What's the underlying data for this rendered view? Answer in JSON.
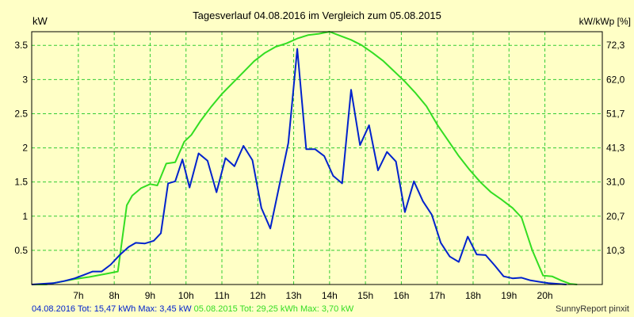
{
  "colors": {
    "background": "#FFFFC6",
    "grid": "#33CC33",
    "series_2016": "#0022CC",
    "series_2015": "#33DD22",
    "text": "#000000"
  },
  "legend": {
    "series_2016_text": "04.08.2016 Tot: 15,47 kWh Max: 3,45 kW",
    "series_2015_text": "05.08.2015 Tot: 29,25 kWh Max: 3,70 kW"
  },
  "credit": "SunnyReport pinxit",
  "chart_data": {
    "type": "line",
    "title": "Tagesverlauf 04.08.2016 im Vergleich zum 05.08.2015",
    "ylabel_left": "kW",
    "ylabel_right": "kW/kWp [%]",
    "xlim": [
      5.7,
      21.6
    ],
    "ylim": [
      0,
      3.7
    ],
    "grid": true,
    "x_ticks": [
      7,
      8,
      9,
      10,
      11,
      12,
      13,
      14,
      15,
      16,
      17,
      18,
      19,
      20
    ],
    "x_tick_labels": [
      "7h",
      "8h",
      "9h",
      "10h",
      "11h",
      "12h",
      "13h",
      "14h",
      "15h",
      "16h",
      "17h",
      "18h",
      "19h",
      "20h"
    ],
    "y_ticks_left": [
      0.5,
      1,
      1.5,
      2,
      2.5,
      3,
      3.5
    ],
    "y_tick_labels_left": [
      "0.5",
      "1",
      "1.5",
      "2",
      "2.5",
      "3",
      "3.5"
    ],
    "y_ticks_right_positions": [
      0.5,
      1.0,
      1.5,
      2.0,
      2.5,
      3.0,
      3.5
    ],
    "y_tick_labels_right": [
      "10,3",
      "20,7",
      "31,0",
      "41,3",
      "51,7",
      "62,0",
      "72,3"
    ],
    "series": [
      {
        "name": "04.08.2016",
        "x": [
          5.7,
          6.3,
          6.6,
          6.9,
          7.15,
          7.4,
          7.65,
          7.9,
          8.15,
          8.4,
          8.6,
          8.85,
          9.1,
          9.3,
          9.5,
          9.7,
          9.9,
          10.1,
          10.35,
          10.6,
          10.85,
          11.1,
          11.35,
          11.6,
          11.85,
          12.1,
          12.35,
          12.6,
          12.85,
          13.1,
          13.35,
          13.6,
          13.85,
          14.1,
          14.35,
          14.6,
          14.85,
          15.1,
          15.35,
          15.6,
          15.85,
          16.1,
          16.35,
          16.6,
          16.85,
          17.1,
          17.35,
          17.6,
          17.85,
          18.1,
          18.35,
          18.6,
          18.85,
          19.1,
          19.35,
          19.6,
          19.85,
          20.1,
          20.35,
          20.6
        ],
        "values": [
          0.0,
          0.02,
          0.05,
          0.09,
          0.14,
          0.19,
          0.19,
          0.29,
          0.43,
          0.55,
          0.61,
          0.6,
          0.64,
          0.75,
          1.48,
          1.51,
          1.83,
          1.42,
          1.92,
          1.81,
          1.35,
          1.85,
          1.73,
          2.03,
          1.82,
          1.12,
          0.82,
          1.45,
          2.07,
          3.45,
          1.98,
          1.98,
          1.88,
          1.59,
          1.48,
          2.85,
          2.04,
          2.33,
          1.67,
          1.94,
          1.8,
          1.06,
          1.51,
          1.22,
          1.02,
          0.61,
          0.41,
          0.33,
          0.7,
          0.44,
          0.43,
          0.28,
          0.12,
          0.09,
          0.1,
          0.06,
          0.04,
          0.02,
          0.01,
          0.0
        ]
      },
      {
        "name": "05.08.2015",
        "x": [
          5.7,
          6.1,
          6.5,
          6.9,
          7.3,
          7.7,
          8.1,
          8.35,
          8.5,
          8.75,
          9.0,
          9.2,
          9.45,
          9.7,
          9.95,
          10.15,
          10.4,
          10.7,
          11.0,
          11.3,
          11.6,
          11.9,
          12.2,
          12.5,
          12.8,
          13.1,
          13.4,
          13.7,
          14.0,
          14.3,
          14.6,
          14.9,
          15.2,
          15.5,
          15.8,
          16.1,
          16.4,
          16.7,
          17.0,
          17.3,
          17.6,
          17.9,
          18.2,
          18.5,
          18.8,
          19.1,
          19.35,
          19.65,
          19.95,
          20.2,
          20.45,
          20.7,
          20.9
        ],
        "values": [
          0.0,
          0.0,
          0.04,
          0.08,
          0.11,
          0.15,
          0.19,
          1.16,
          1.3,
          1.41,
          1.47,
          1.45,
          1.77,
          1.79,
          2.09,
          2.19,
          2.39,
          2.6,
          2.79,
          2.95,
          3.11,
          3.27,
          3.39,
          3.48,
          3.53,
          3.6,
          3.65,
          3.67,
          3.7,
          3.64,
          3.58,
          3.5,
          3.39,
          3.27,
          3.12,
          2.97,
          2.8,
          2.61,
          2.34,
          2.11,
          1.88,
          1.68,
          1.5,
          1.35,
          1.24,
          1.12,
          0.98,
          0.5,
          0.13,
          0.12,
          0.06,
          0.01,
          0.0
        ]
      }
    ]
  }
}
